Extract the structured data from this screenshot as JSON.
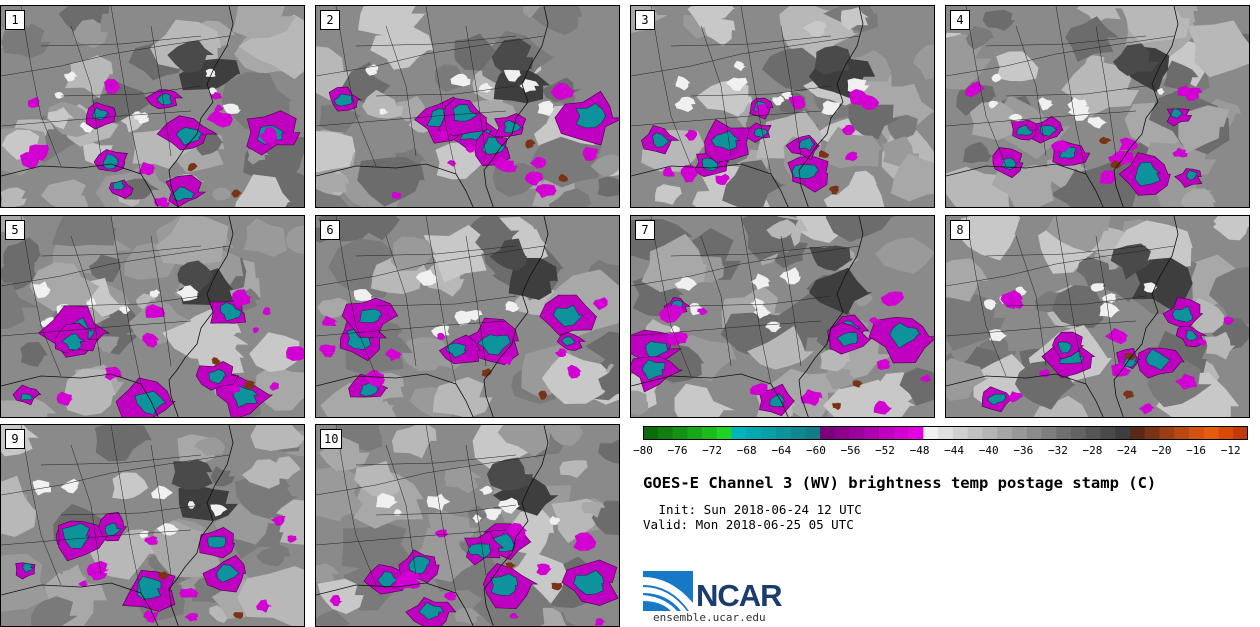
{
  "title": "GOES-E Channel 3 (WV) brightness temp postage stamp (C)",
  "init": " Init: Sun 2018-06-24 12 UTC",
  "valid": "Valid: Mon 2018-06-25 05 UTC",
  "logo": {
    "text": "NCAR",
    "url": "ensemble.ucar.edu",
    "icon": "ncar-wave-logo"
  },
  "members": [
    "1",
    "2",
    "3",
    "4",
    "5",
    "6",
    "7",
    "8",
    "9",
    "10"
  ],
  "colorbar": {
    "min": -80,
    "max": -10,
    "step": 2,
    "tick_labels": [
      "-80",
      "-76",
      "-72",
      "-68",
      "-64",
      "-60",
      "-56",
      "-52",
      "-48",
      "-44",
      "-40",
      "-36",
      "-32",
      "-28",
      "-24",
      "-20",
      "-16",
      "-12"
    ],
    "colors": [
      "#0b6a0b",
      "#107e10",
      "#149214",
      "#18a618",
      "#1cbb1c",
      "#20d320",
      "#00b3bd",
      "#04a8b0",
      "#0a9ea6",
      "#0d939b",
      "#108890",
      "#137d85",
      "#7a007a",
      "#8a008a",
      "#9c009c",
      "#ae00ae",
      "#c000c0",
      "#d200d2",
      "#e200e2",
      "#f0f0f0",
      "#e0e0e0",
      "#d0d0d0",
      "#c2c2c2",
      "#b4b4b4",
      "#a6a6a6",
      "#999999",
      "#8b8b8b",
      "#7e7e7e",
      "#707070",
      "#636363",
      "#565656",
      "#4a4a4a",
      "#3e3e3e",
      "#5a2a18",
      "#7a3415",
      "#9a3e13",
      "#ba4811",
      "#d4520f",
      "#e65c0d",
      "#d84a0a",
      "#c23a08"
    ]
  }
}
